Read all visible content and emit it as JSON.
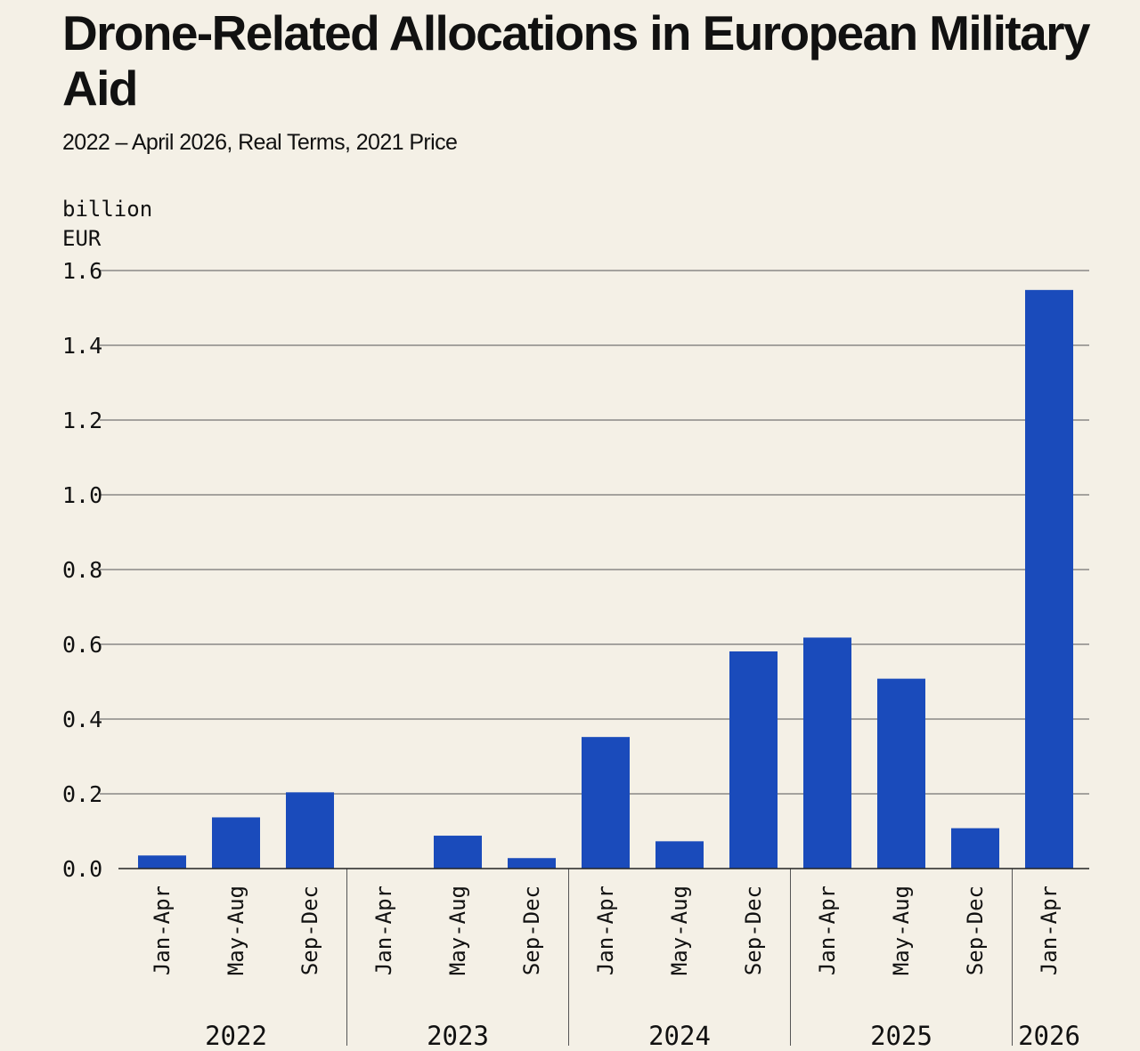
{
  "header": {
    "title": "Drone-Related Allocations in European Military Aid",
    "subtitle": "2022 – April 2026, Real Terms, 2021 Price"
  },
  "chart_data": {
    "type": "bar",
    "title": "Drone-Related Allocations in European Military Aid",
    "subtitle": "2022 – April 2026, Real Terms, 2021 Price",
    "ylabel_lines": [
      "billion",
      "EUR"
    ],
    "ylim": [
      0,
      1.6
    ],
    "yticks": [
      "0.0",
      "0.2",
      "0.4",
      "0.6",
      "0.8",
      "1.0",
      "1.2",
      "1.4",
      "1.6"
    ],
    "grid": true,
    "bar_color": "#1a4bbb",
    "groups": [
      {
        "year": "2022",
        "categories": [
          "Jan-Apr",
          "May-Aug",
          "Sep-Dec"
        ],
        "values": [
          0.035,
          0.137,
          0.204
        ]
      },
      {
        "year": "2023",
        "categories": [
          "Jan-Apr",
          "May-Aug",
          "Sep-Dec"
        ],
        "values": [
          0.0,
          0.088,
          0.028
        ]
      },
      {
        "year": "2024",
        "categories": [
          "Jan-Apr",
          "May-Aug",
          "Sep-Dec"
        ],
        "values": [
          0.352,
          0.073,
          0.581
        ]
      },
      {
        "year": "2025",
        "categories": [
          "Jan-Apr",
          "May-Aug",
          "Sep-Dec"
        ],
        "values": [
          0.618,
          0.508,
          0.108
        ]
      },
      {
        "year": "2026",
        "categories": [
          "Jan-Apr"
        ],
        "values": [
          1.548
        ]
      }
    ]
  }
}
